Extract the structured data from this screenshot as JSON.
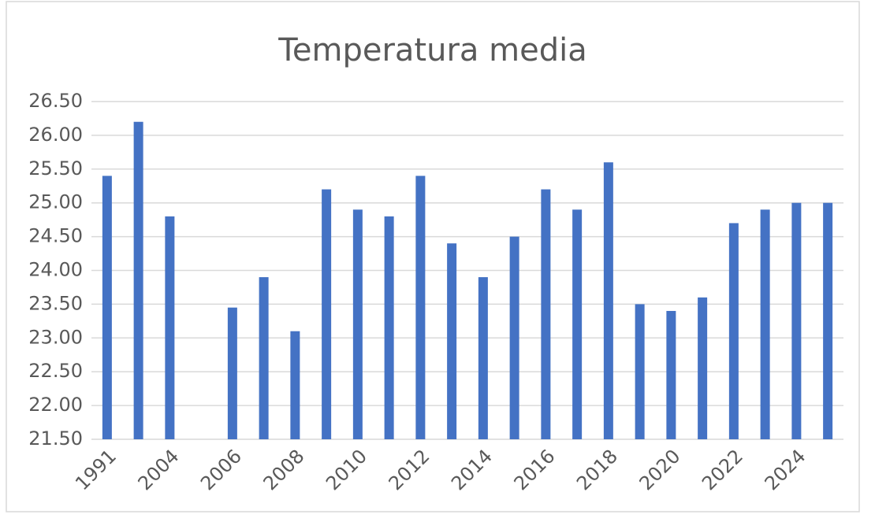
{
  "chart_data": {
    "type": "bar",
    "title": "Temperatura media",
    "categories": [
      "1991",
      null,
      "2004",
      null,
      "2006",
      null,
      "2008",
      null,
      "2010",
      null,
      "2012",
      null,
      "2014",
      null,
      "2016",
      null,
      "2018",
      null,
      "2020",
      null,
      "2022",
      null,
      "2024",
      null
    ],
    "values": [
      25.4,
      26.2,
      24.8,
      null,
      23.45,
      23.9,
      23.1,
      25.2,
      24.9,
      24.8,
      25.4,
      24.4,
      23.9,
      24.5,
      25.2,
      24.9,
      25.6,
      23.5,
      23.4,
      23.6,
      24.7,
      24.9,
      25.0,
      25.0
    ],
    "color": "#4472c4",
    "ylim": [
      21.5,
      26.5
    ],
    "yticks": [
      {
        "value": 21.5,
        "label": "21.50"
      },
      {
        "value": 22,
        "label": "22.00"
      },
      {
        "value": 22.5,
        "label": "22.50"
      },
      {
        "value": 23,
        "label": "23.00"
      },
      {
        "value": 23.5,
        "label": "23.50"
      },
      {
        "value": 24,
        "label": "24.00"
      },
      {
        "value": 24.5,
        "label": "24.50"
      },
      {
        "value": 25,
        "label": "25.00"
      },
      {
        "value": 25.5,
        "label": "25.50"
      },
      {
        "value": 26,
        "label": "26.00"
      },
      {
        "value": 26.5,
        "label": "26.50"
      }
    ],
    "grid": true
  }
}
